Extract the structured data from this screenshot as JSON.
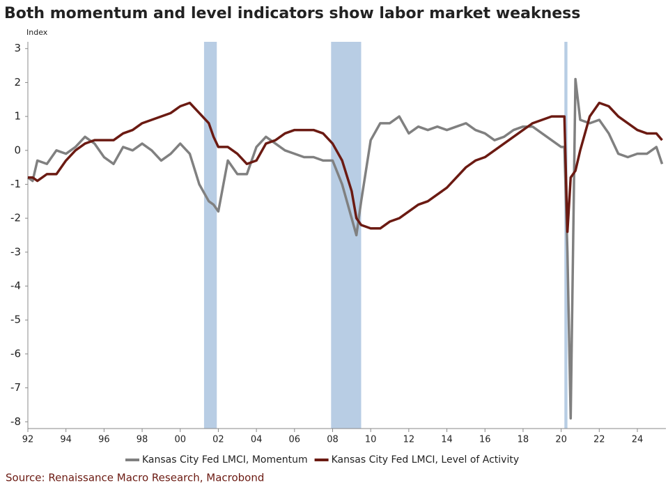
{
  "chart_data": {
    "type": "line",
    "title": "Both momentum and level indicators show labor market weakness",
    "y_label": "Index",
    "source": "Source: Renaissance Macro Research, Macrobond",
    "x": [
      1992,
      1992.25,
      1992.5,
      1993,
      1993.5,
      1994,
      1994.5,
      1995,
      1995.5,
      1996,
      1996.5,
      1997,
      1997.5,
      1998,
      1998.5,
      1999,
      1999.5,
      2000,
      2000.5,
      2001,
      2001.5,
      2001.75,
      2002,
      2002.5,
      2003,
      2003.5,
      2004,
      2004.5,
      2005,
      2005.5,
      2006,
      2006.5,
      2007,
      2007.5,
      2008,
      2008.5,
      2009,
      2009.25,
      2009.5,
      2010,
      2010.5,
      2011,
      2011.5,
      2012,
      2012.5,
      2013,
      2013.5,
      2014,
      2014.5,
      2015,
      2015.5,
      2016,
      2016.5,
      2017,
      2017.5,
      2018,
      2018.5,
      2019,
      2019.5,
      2020,
      2020.17,
      2020.33,
      2020.5,
      2020.75,
      2021,
      2021.5,
      2022,
      2022.5,
      2023,
      2023.5,
      2024,
      2024.5,
      2025,
      2025.3
    ],
    "series": [
      {
        "name": "Kansas City Fed LMCI, Momentum",
        "color": "#808080",
        "values": [
          -0.8,
          -0.9,
          -0.3,
          -0.4,
          0.0,
          -0.1,
          0.1,
          0.4,
          0.2,
          -0.2,
          -0.4,
          0.1,
          0.0,
          0.2,
          0.0,
          -0.3,
          -0.1,
          0.2,
          -0.1,
          -1.0,
          -1.5,
          -1.6,
          -1.8,
          -0.3,
          -0.7,
          -0.7,
          0.1,
          0.4,
          0.2,
          0.0,
          -0.1,
          -0.2,
          -0.2,
          -0.3,
          -0.3,
          -1.0,
          -2.0,
          -2.5,
          -1.5,
          0.3,
          0.8,
          0.8,
          1.0,
          0.5,
          0.7,
          0.6,
          0.7,
          0.6,
          0.7,
          0.8,
          0.6,
          0.5,
          0.3,
          0.4,
          0.6,
          0.7,
          0.7,
          0.5,
          0.3,
          0.1,
          0.1,
          -3.0,
          -7.9,
          2.1,
          0.9,
          0.8,
          0.9,
          0.5,
          -0.1,
          -0.2,
          -0.1,
          -0.1,
          0.1,
          -0.4
        ]
      },
      {
        "name": "Kansas City Fed LMCI, Level of Activity",
        "color": "#6b1a12",
        "values": [
          -0.8,
          -0.8,
          -0.9,
          -0.7,
          -0.7,
          -0.3,
          0.0,
          0.2,
          0.3,
          0.3,
          0.3,
          0.5,
          0.6,
          0.8,
          0.9,
          1.0,
          1.1,
          1.3,
          1.4,
          1.1,
          0.8,
          0.4,
          0.1,
          0.1,
          -0.1,
          -0.4,
          -0.3,
          0.2,
          0.3,
          0.5,
          0.6,
          0.6,
          0.6,
          0.5,
          0.2,
          -0.3,
          -1.2,
          -2.0,
          -2.2,
          -2.3,
          -2.3,
          -2.1,
          -2.0,
          -1.8,
          -1.6,
          -1.5,
          -1.3,
          -1.1,
          -0.8,
          -0.5,
          -0.3,
          -0.2,
          0.0,
          0.2,
          0.4,
          0.6,
          0.8,
          0.9,
          1.0,
          1.0,
          1.0,
          -2.4,
          -0.8,
          -0.6,
          0.0,
          1.0,
          1.4,
          1.3,
          1.0,
          0.8,
          0.6,
          0.5,
          0.5,
          0.3
        ]
      }
    ],
    "shaded_periods": [
      [
        2001.25,
        2001.92
      ],
      [
        2007.92,
        2009.5
      ],
      [
        2020.17,
        2020.33
      ]
    ],
    "shade_color": "#b8cde4",
    "xlim": [
      1992,
      2025.5
    ],
    "xticks": [
      {
        "value": 1992,
        "label": "92"
      },
      {
        "value": 1994,
        "label": "94"
      },
      {
        "value": 1996,
        "label": "96"
      },
      {
        "value": 1998,
        "label": "98"
      },
      {
        "value": 2000,
        "label": "00"
      },
      {
        "value": 2002,
        "label": "02"
      },
      {
        "value": 2004,
        "label": "04"
      },
      {
        "value": 2006,
        "label": "06"
      },
      {
        "value": 2008,
        "label": "08"
      },
      {
        "value": 2010,
        "label": "10"
      },
      {
        "value": 2012,
        "label": "12"
      },
      {
        "value": 2014,
        "label": "14"
      },
      {
        "value": 2016,
        "label": "16"
      },
      {
        "value": 2018,
        "label": "18"
      },
      {
        "value": 2020,
        "label": "20"
      },
      {
        "value": 2022,
        "label": "22"
      },
      {
        "value": 2024,
        "label": "24"
      }
    ],
    "ylim": [
      -8.2,
      3.2
    ],
    "yticks": [
      -8,
      -7,
      -6,
      -5,
      -4,
      -3,
      -2,
      -1,
      0,
      1,
      2,
      3
    ],
    "legend": "bottom"
  }
}
